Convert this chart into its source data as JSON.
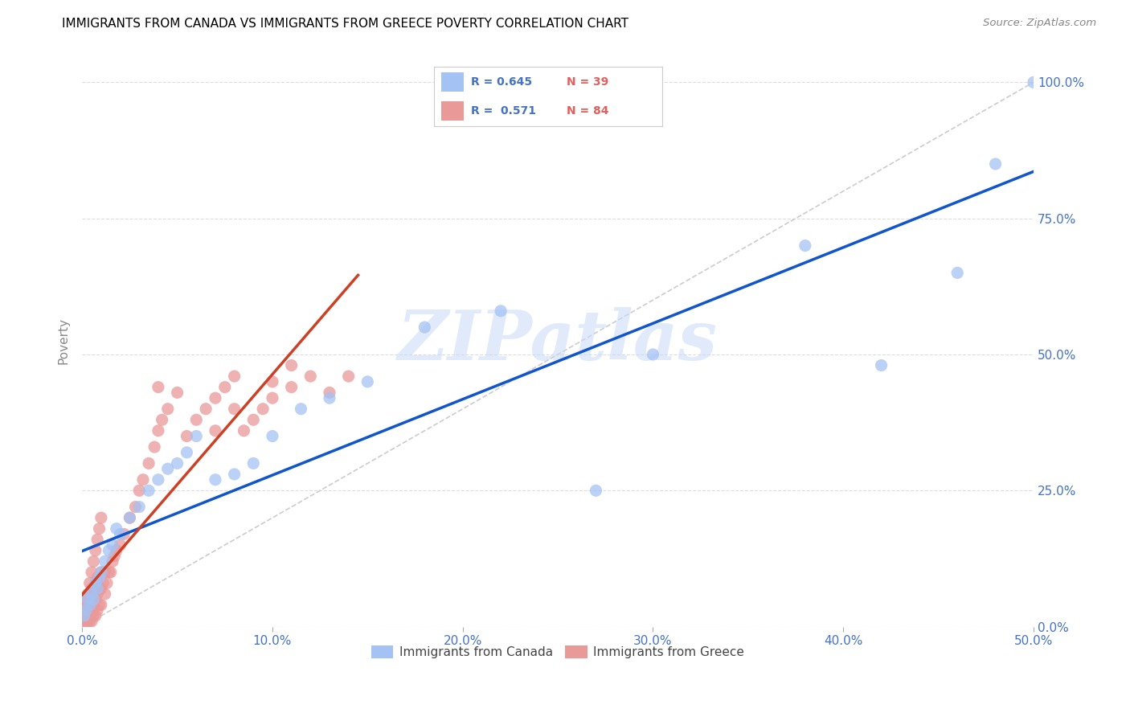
{
  "title": "IMMIGRANTS FROM CANADA VS IMMIGRANTS FROM GREECE POVERTY CORRELATION CHART",
  "source": "Source: ZipAtlas.com",
  "ylabel_label": "Poverty",
  "xlim": [
    0.0,
    0.5
  ],
  "ylim": [
    0.0,
    1.05
  ],
  "legend_label1": "Immigrants from Canada",
  "legend_label2": "Immigrants from Greece",
  "R1": 0.645,
  "N1": 39,
  "R2": 0.571,
  "N2": 84,
  "color_canada": "#a4c2f4",
  "color_greece": "#ea9999",
  "color_canada_line": "#1155cc",
  "color_greece_line": "#cc4125",
  "watermark_text": "ZIPatlas",
  "canada_x": [
    0.001,
    0.002,
    0.003,
    0.004,
    0.005,
    0.006,
    0.007,
    0.008,
    0.009,
    0.01,
    0.012,
    0.014,
    0.016,
    0.018,
    0.02,
    0.025,
    0.03,
    0.035,
    0.04,
    0.045,
    0.05,
    0.055,
    0.06,
    0.07,
    0.08,
    0.09,
    0.1,
    0.115,
    0.13,
    0.15,
    0.18,
    0.22,
    0.27,
    0.3,
    0.38,
    0.42,
    0.46,
    0.48,
    0.5
  ],
  "canada_y": [
    0.02,
    0.03,
    0.05,
    0.04,
    0.06,
    0.05,
    0.08,
    0.07,
    0.09,
    0.1,
    0.12,
    0.14,
    0.15,
    0.18,
    0.17,
    0.2,
    0.22,
    0.25,
    0.27,
    0.29,
    0.3,
    0.32,
    0.35,
    0.27,
    0.28,
    0.3,
    0.35,
    0.4,
    0.42,
    0.45,
    0.55,
    0.58,
    0.25,
    0.5,
    0.7,
    0.48,
    0.65,
    0.85,
    1.0
  ],
  "greece_x": [
    0.001,
    0.001,
    0.001,
    0.001,
    0.001,
    0.002,
    0.002,
    0.002,
    0.002,
    0.003,
    0.003,
    0.003,
    0.003,
    0.004,
    0.004,
    0.004,
    0.004,
    0.005,
    0.005,
    0.005,
    0.005,
    0.006,
    0.006,
    0.006,
    0.007,
    0.007,
    0.007,
    0.008,
    0.008,
    0.008,
    0.009,
    0.009,
    0.01,
    0.01,
    0.01,
    0.011,
    0.012,
    0.012,
    0.013,
    0.014,
    0.015,
    0.016,
    0.017,
    0.018,
    0.02,
    0.022,
    0.025,
    0.028,
    0.03,
    0.032,
    0.035,
    0.038,
    0.04,
    0.042,
    0.045,
    0.05,
    0.055,
    0.06,
    0.065,
    0.07,
    0.075,
    0.08,
    0.085,
    0.09,
    0.095,
    0.1,
    0.11,
    0.12,
    0.13,
    0.14,
    0.002,
    0.003,
    0.004,
    0.005,
    0.006,
    0.007,
    0.008,
    0.009,
    0.01,
    0.04,
    0.07,
    0.08,
    0.1,
    0.11
  ],
  "greece_y": [
    0.01,
    0.02,
    0.03,
    0.04,
    0.05,
    0.01,
    0.02,
    0.03,
    0.04,
    0.01,
    0.02,
    0.03,
    0.05,
    0.01,
    0.02,
    0.04,
    0.06,
    0.01,
    0.03,
    0.05,
    0.07,
    0.02,
    0.04,
    0.07,
    0.02,
    0.05,
    0.08,
    0.03,
    0.06,
    0.09,
    0.04,
    0.07,
    0.04,
    0.07,
    0.1,
    0.08,
    0.06,
    0.1,
    0.08,
    0.1,
    0.1,
    0.12,
    0.13,
    0.14,
    0.15,
    0.17,
    0.2,
    0.22,
    0.25,
    0.27,
    0.3,
    0.33,
    0.36,
    0.38,
    0.4,
    0.43,
    0.35,
    0.38,
    0.4,
    0.42,
    0.44,
    0.46,
    0.36,
    0.38,
    0.4,
    0.42,
    0.44,
    0.46,
    0.43,
    0.46,
    0.03,
    0.06,
    0.08,
    0.1,
    0.12,
    0.14,
    0.16,
    0.18,
    0.2,
    0.44,
    0.36,
    0.4,
    0.45,
    0.48
  ]
}
